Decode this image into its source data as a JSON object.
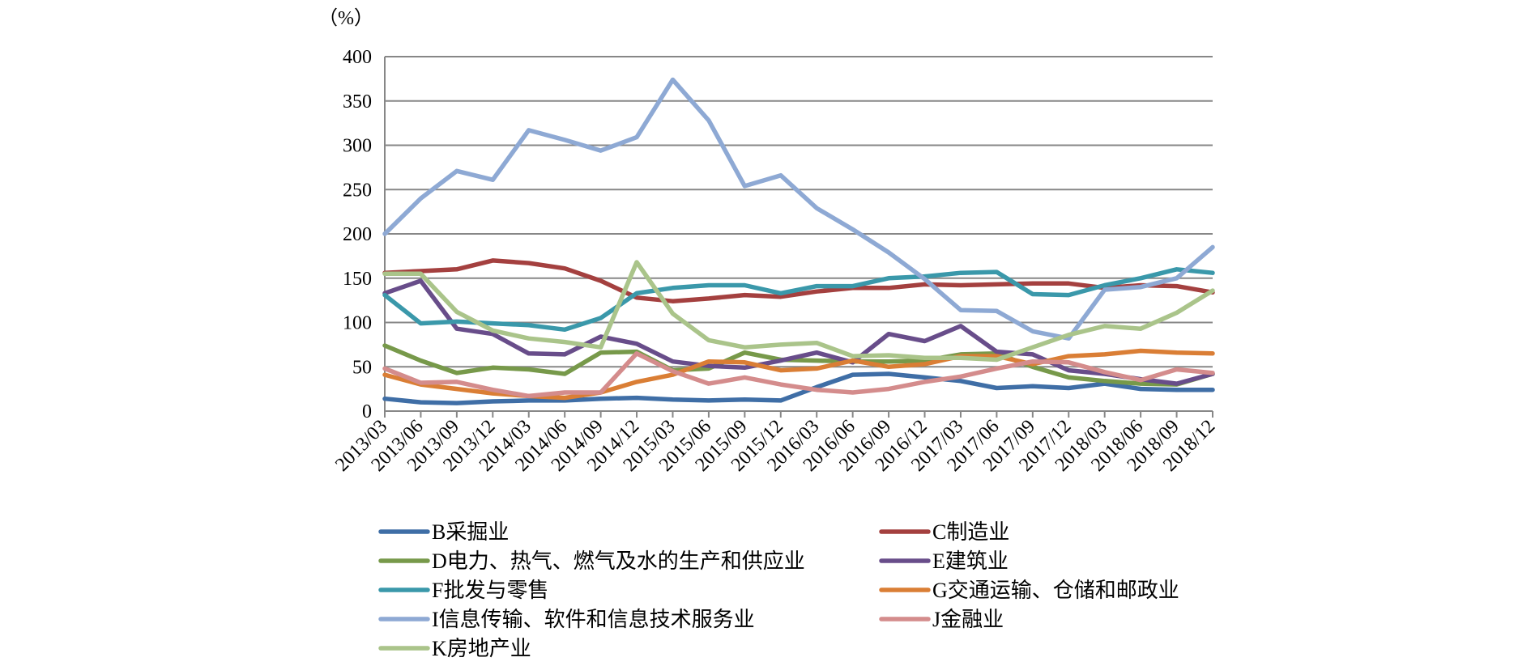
{
  "chart_data": {
    "type": "line",
    "unit_label": "（%）",
    "ylim": [
      0,
      400
    ],
    "yticks": [
      0,
      50,
      100,
      150,
      200,
      250,
      300,
      350,
      400
    ],
    "grid": "horizontal",
    "legend_position": "bottom",
    "x": [
      "2013/03",
      "2013/06",
      "2013/09",
      "2013/12",
      "2014/03",
      "2014/06",
      "2014/09",
      "2014/12",
      "2015/03",
      "2015/06",
      "2015/09",
      "2015/12",
      "2016/03",
      "2016/06",
      "2016/09",
      "2016/12",
      "2017/03",
      "2017/06",
      "2017/09",
      "2017/12",
      "2018/03",
      "2018/06",
      "2018/09",
      "2018/12"
    ],
    "series": [
      {
        "name": "B采掘业",
        "color": "#3f6ea6",
        "values": [
          14,
          10,
          9,
          11,
          12,
          12,
          14,
          15,
          13,
          12,
          13,
          12,
          27,
          41,
          42,
          38,
          34,
          26,
          28,
          26,
          31,
          25,
          24,
          24
        ]
      },
      {
        "name": "C制造业",
        "color": "#a4403f",
        "values": [
          156,
          158,
          160,
          170,
          167,
          161,
          147,
          128,
          124,
          127,
          131,
          129,
          135,
          139,
          139,
          143,
          142,
          143,
          144,
          144,
          139,
          142,
          141,
          134
        ]
      },
      {
        "name": "D电力、热气、燃气及水的生产和供应业",
        "color": "#77994a",
        "values": [
          74,
          57,
          43,
          49,
          47,
          42,
          66,
          67,
          46,
          48,
          66,
          58,
          57,
          56,
          56,
          57,
          64,
          65,
          50,
          38,
          34,
          31,
          30,
          42
        ]
      },
      {
        "name": "E建筑业",
        "color": "#684d8a",
        "values": [
          133,
          147,
          93,
          87,
          65,
          64,
          84,
          76,
          56,
          51,
          49,
          57,
          66,
          55,
          87,
          79,
          96,
          67,
          64,
          46,
          42,
          36,
          31,
          42
        ]
      },
      {
        "name": "F批发与零售",
        "color": "#3a98aa",
        "values": [
          131,
          99,
          101,
          99,
          97,
          92,
          105,
          133,
          139,
          142,
          142,
          133,
          141,
          141,
          150,
          152,
          156,
          157,
          132,
          131,
          142,
          150,
          160,
          156
        ]
      },
      {
        "name": "G交通运输、仓储和邮政业",
        "color": "#da7e35",
        "values": [
          41,
          30,
          25,
          20,
          17,
          15,
          21,
          33,
          41,
          56,
          55,
          46,
          48,
          57,
          50,
          53,
          62,
          62,
          53,
          62,
          64,
          68,
          66,
          65
        ]
      },
      {
        "name": "I信息传输、软件和信息技术服务业",
        "color": "#8ea9d4",
        "values": [
          200,
          240,
          271,
          261,
          317,
          306,
          294,
          309,
          374,
          328,
          254,
          266,
          229,
          205,
          179,
          149,
          114,
          113,
          90,
          82,
          137,
          140,
          150,
          185
        ]
      },
      {
        "name": "J金融业",
        "color": "#d48c8c",
        "values": [
          48,
          32,
          33,
          24,
          17,
          21,
          21,
          65,
          45,
          31,
          38,
          30,
          24,
          21,
          25,
          33,
          39,
          48,
          56,
          55,
          44,
          35,
          47,
          43
        ]
      },
      {
        "name": "K房地产业",
        "color": "#aac48a",
        "values": [
          155,
          155,
          112,
          91,
          82,
          78,
          72,
          168,
          110,
          80,
          72,
          75,
          77,
          62,
          63,
          60,
          60,
          58,
          72,
          86,
          96,
          93,
          111,
          136
        ]
      }
    ]
  }
}
